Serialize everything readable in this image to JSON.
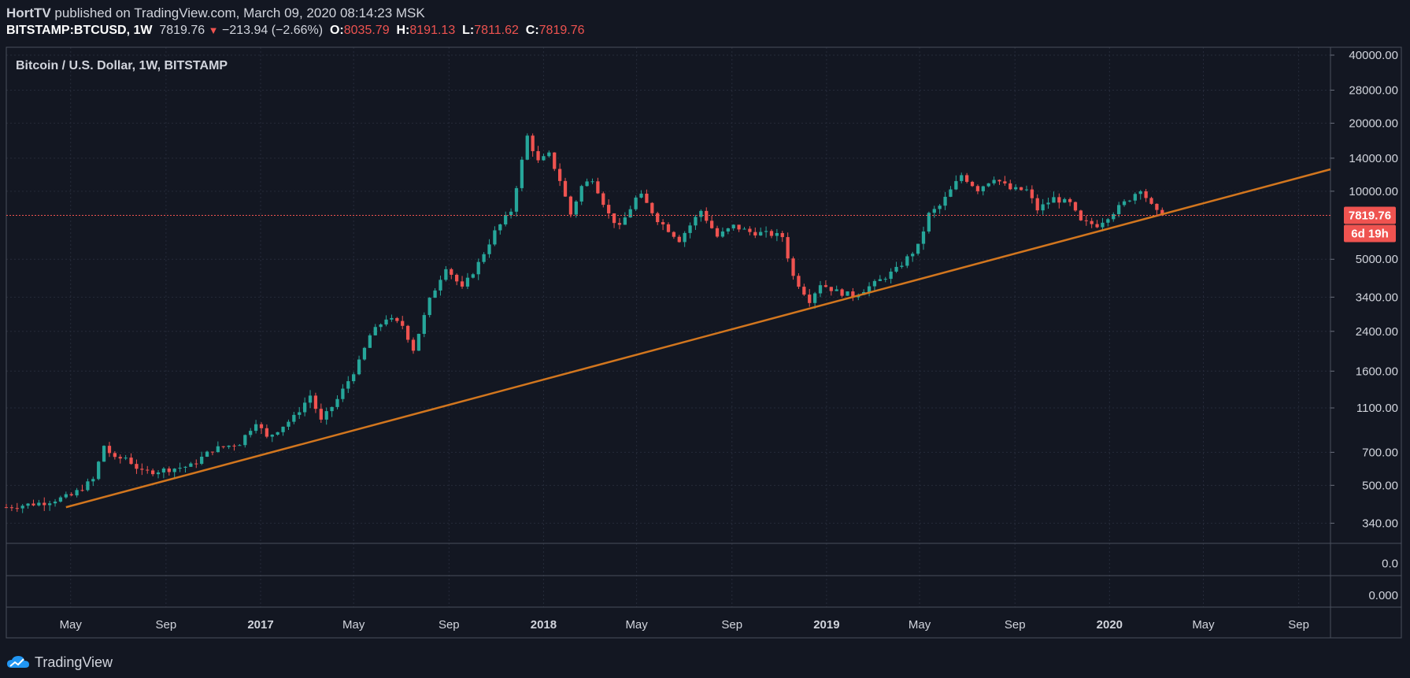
{
  "header": {
    "author": "HortTV",
    "published_text": " published on TradingView.com, March 09, 2020 08:14:23 MSK",
    "symbol": "BITSTAMP:BTCUSD, 1W",
    "last": "7819.76",
    "change": "−213.94 (−2.66%)",
    "o_label": "O:",
    "o_value": "8035.79",
    "h_label": "H:",
    "h_value": "8191.13",
    "l_label": "L:",
    "l_value": "7811.62",
    "c_label": "C:",
    "c_value": "7819.76"
  },
  "chart_title": "Bitcoin / U.S. Dollar, 1W, BITSTAMP",
  "footer": {
    "brand": "TradingView"
  },
  "colors": {
    "background": "#131722",
    "up": "#26a69a",
    "down": "#ef5350",
    "trendline": "#d2761e",
    "grid": "#262b3a",
    "price_line": "#ef5350",
    "axis_text": "#d1d4dc"
  },
  "chart_data": {
    "type": "candlestick",
    "title": "Bitcoin / U.S. Dollar, 1W, BITSTAMP",
    "y_scale": "log",
    "ylim": [
      300,
      40000
    ],
    "y_ticks": [
      "40000.00",
      "28000.00",
      "20000.00",
      "14000.00",
      "10000.00",
      "5000.00",
      "3400.00",
      "2400.00",
      "1600.00",
      "1100.00",
      "700.00",
      "500.00",
      "340.00"
    ],
    "x_range": [
      "2016-02-08",
      "2020-10-12"
    ],
    "x_ticks": [
      {
        "label": "May",
        "date": "2016-05-01",
        "bold": false
      },
      {
        "label": "Sep",
        "date": "2016-09-01",
        "bold": false
      },
      {
        "label": "2017",
        "date": "2017-01-01",
        "bold": true
      },
      {
        "label": "May",
        "date": "2017-05-01",
        "bold": false
      },
      {
        "label": "Sep",
        "date": "2017-09-01",
        "bold": false
      },
      {
        "label": "2018",
        "date": "2018-01-01",
        "bold": true
      },
      {
        "label": "May",
        "date": "2018-05-01",
        "bold": false
      },
      {
        "label": "Sep",
        "date": "2018-09-01",
        "bold": false
      },
      {
        "label": "2019",
        "date": "2019-01-01",
        "bold": true
      },
      {
        "label": "May",
        "date": "2019-05-01",
        "bold": false
      },
      {
        "label": "Sep",
        "date": "2019-09-01",
        "bold": false
      },
      {
        "label": "2020",
        "date": "2020-01-01",
        "bold": true
      },
      {
        "label": "May",
        "date": "2020-05-01",
        "bold": false
      },
      {
        "label": "Sep",
        "date": "2020-09-01",
        "bold": false
      }
    ],
    "last_price": 7819.76,
    "last_price_label": "7819.76",
    "countdown_label": "6d 19h",
    "trendline": {
      "start": {
        "date": "2016-04-25",
        "price": 400
      },
      "end": {
        "date": "2020-10-12",
        "price": 12500
      }
    },
    "indicator_panes": [
      {
        "tick_label": "0.0"
      },
      {
        "tick_label": "0.000"
      }
    ],
    "anchors": [
      [
        "2016-02-08",
        400
      ],
      [
        "2016-03-28",
        420
      ],
      [
        "2016-05-02",
        450
      ],
      [
        "2016-05-30",
        530
      ],
      [
        "2016-06-13",
        750
      ],
      [
        "2016-06-27",
        650
      ],
      [
        "2016-07-11",
        665
      ],
      [
        "2016-08-01",
        570
      ],
      [
        "2016-08-22",
        580
      ],
      [
        "2016-10-03",
        610
      ],
      [
        "2016-10-31",
        720
      ],
      [
        "2016-12-05",
        770
      ],
      [
        "2016-12-26",
        960
      ],
      [
        "2017-01-09",
        810
      ],
      [
        "2017-02-13",
        1000
      ],
      [
        "2017-03-06",
        1250
      ],
      [
        "2017-03-20",
        960
      ],
      [
        "2017-04-10",
        1200
      ],
      [
        "2017-05-08",
        1750
      ],
      [
        "2017-05-22",
        2300
      ],
      [
        "2017-06-12",
        2750
      ],
      [
        "2017-07-03",
        2550
      ],
      [
        "2017-07-17",
        2000
      ],
      [
        "2017-08-07",
        3300
      ],
      [
        "2017-08-28",
        4650
      ],
      [
        "2017-09-18",
        3700
      ],
      [
        "2017-10-09",
        4800
      ],
      [
        "2017-10-30",
        6600
      ],
      [
        "2017-11-20",
        8200
      ],
      [
        "2017-12-11",
        17500
      ],
      [
        "2017-12-25",
        13500
      ],
      [
        "2018-01-08",
        14500
      ],
      [
        "2018-01-22",
        11200
      ],
      [
        "2018-02-05",
        7900
      ],
      [
        "2018-02-19",
        10500
      ],
      [
        "2018-03-05",
        11400
      ],
      [
        "2018-03-26",
        7900
      ],
      [
        "2018-04-09",
        6900
      ],
      [
        "2018-04-30",
        9300
      ],
      [
        "2018-05-07",
        9500
      ],
      [
        "2018-05-28",
        7500
      ],
      [
        "2018-06-25",
        6100
      ],
      [
        "2018-07-23",
        8200
      ],
      [
        "2018-08-13",
        6300
      ],
      [
        "2018-09-03",
        7000
      ],
      [
        "2018-09-24",
        6600
      ],
      [
        "2018-10-22",
        6450
      ],
      [
        "2018-11-05",
        6300
      ],
      [
        "2018-11-19",
        4200
      ],
      [
        "2018-12-10",
        3300
      ],
      [
        "2018-12-24",
        3900
      ],
      [
        "2019-01-14",
        3600
      ],
      [
        "2019-02-04",
        3450
      ],
      [
        "2019-03-04",
        3900
      ],
      [
        "2019-04-01",
        4500
      ],
      [
        "2019-04-29",
        5700
      ],
      [
        "2019-05-13",
        7900
      ],
      [
        "2019-05-27",
        8600
      ],
      [
        "2019-06-24",
        11800
      ],
      [
        "2019-07-15",
        10200
      ],
      [
        "2019-08-05",
        11500
      ],
      [
        "2019-08-26",
        10200
      ],
      [
        "2019-09-16",
        10100
      ],
      [
        "2019-09-30",
        8300
      ],
      [
        "2019-10-21",
        9300
      ],
      [
        "2019-11-11",
        8800
      ],
      [
        "2019-11-25",
        7300
      ],
      [
        "2019-12-16",
        7100
      ],
      [
        "2020-01-06",
        8100
      ],
      [
        "2020-01-27",
        9300
      ],
      [
        "2020-02-10",
        10300
      ],
      [
        "2020-02-24",
        8600
      ],
      [
        "2020-03-02",
        8035
      ],
      [
        "2020-03-09",
        7820
      ]
    ]
  }
}
